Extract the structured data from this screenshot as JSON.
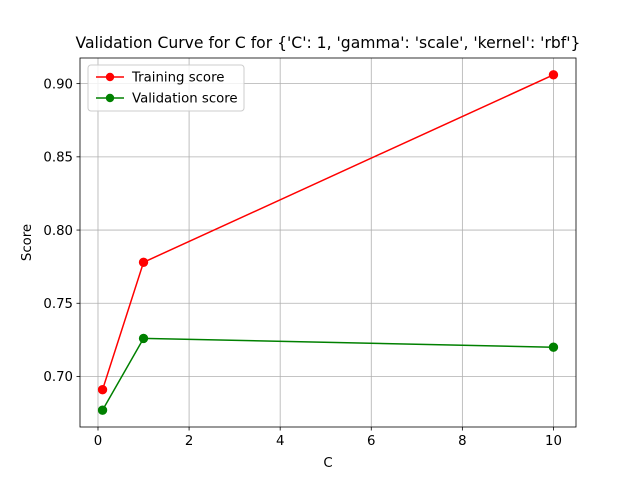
{
  "chart_data": {
    "type": "line",
    "title": "Validation Curve for C for {'C': 1, 'gamma': 'scale', 'kernel': 'rbf'}",
    "xlabel": "C",
    "ylabel": "Score",
    "x": [
      0.1,
      1,
      10
    ],
    "series": [
      {
        "name": "Training score",
        "values": [
          0.691,
          0.778,
          0.906
        ],
        "color": "#ff0000",
        "marker": "circle"
      },
      {
        "name": "Validation score",
        "values": [
          0.677,
          0.726,
          0.72
        ],
        "color": "#008000",
        "marker": "circle"
      }
    ],
    "xlim": [
      -0.395,
      10.495
    ],
    "ylim": [
      0.6655,
      0.9175
    ],
    "xticks": [
      0,
      2,
      4,
      6,
      8,
      10
    ],
    "xtick_labels": [
      "0",
      "2",
      "4",
      "6",
      "8",
      "10"
    ],
    "yticks": [
      0.7,
      0.75,
      0.8,
      0.85,
      0.9
    ],
    "ytick_labels": [
      "0.70",
      "0.75",
      "0.80",
      "0.85",
      "0.90"
    ],
    "grid": true,
    "legend_position": "upper-left"
  }
}
